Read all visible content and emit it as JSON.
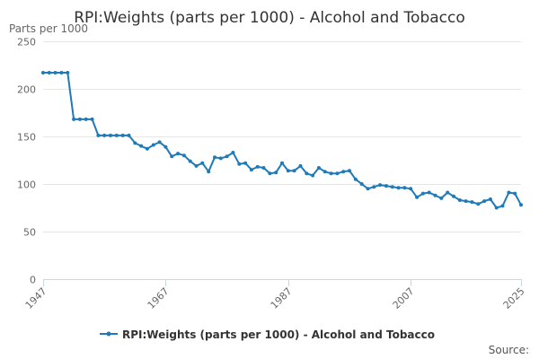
{
  "chart_data": {
    "type": "line",
    "title": "RPI:Weights (parts per 1000) - Alcohol and Tobacco",
    "ylabel": "Parts per 1000",
    "xlabel": "",
    "ylim": [
      0,
      250
    ],
    "yticks": [
      0,
      50,
      100,
      150,
      200,
      250
    ],
    "xlim": [
      1947,
      2025
    ],
    "xticks": [
      "1947",
      "1967",
      "1987",
      "2007",
      "2025"
    ],
    "grid": true,
    "legend_position": "bottom-center",
    "color": "#1f7ab8",
    "credits": "Source:",
    "series": [
      {
        "name": "RPI:Weights (parts per 1000) - Alcohol and Tobacco",
        "x": [
          1947,
          1948,
          1949,
          1950,
          1951,
          1952,
          1953,
          1954,
          1955,
          1956,
          1957,
          1958,
          1959,
          1960,
          1961,
          1962,
          1963,
          1964,
          1965,
          1966,
          1967,
          1968,
          1969,
          1970,
          1971,
          1972,
          1973,
          1974,
          1975,
          1976,
          1977,
          1978,
          1979,
          1980,
          1981,
          1982,
          1983,
          1984,
          1985,
          1986,
          1987,
          1988,
          1989,
          1990,
          1991,
          1992,
          1993,
          1994,
          1995,
          1996,
          1997,
          1998,
          1999,
          2000,
          2001,
          2002,
          2003,
          2004,
          2005,
          2006,
          2007,
          2008,
          2009,
          2010,
          2011,
          2012,
          2013,
          2014,
          2015,
          2016,
          2017,
          2018,
          2019,
          2020,
          2021,
          2022,
          2023,
          2024,
          2025
        ],
        "values": [
          217,
          217,
          217,
          217,
          217,
          168,
          168,
          168,
          168,
          151,
          151,
          151,
          151,
          151,
          151,
          143,
          140,
          137,
          141,
          144,
          139,
          129,
          132,
          130,
          124,
          119,
          122,
          113,
          128,
          127,
          129,
          133,
          121,
          122,
          115,
          118,
          117,
          111,
          112,
          122,
          114,
          114,
          119,
          111,
          109,
          117,
          113,
          111,
          111,
          113,
          114,
          105,
          100,
          95,
          97,
          99,
          98,
          97,
          96,
          96,
          95,
          86,
          90,
          91,
          88,
          85,
          91,
          87,
          83,
          82,
          81,
          79,
          82,
          84,
          75,
          77,
          91,
          90,
          78
        ]
      }
    ]
  }
}
